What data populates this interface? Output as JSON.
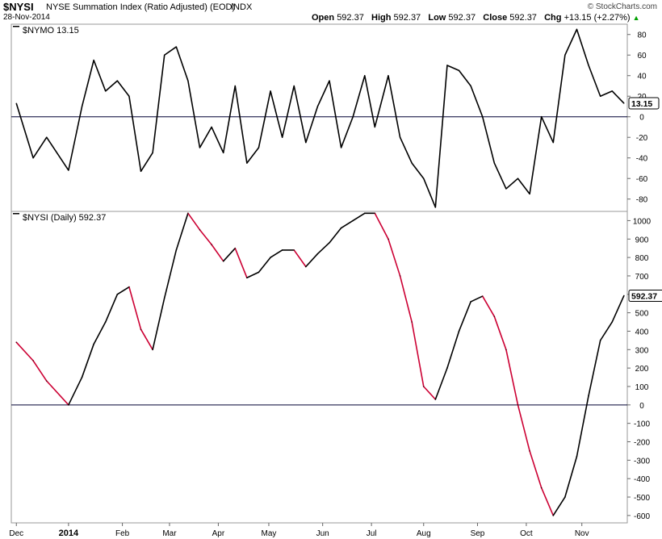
{
  "header": {
    "symbol": "$NYSI",
    "description": "NYSE Summation Index (Ratio Adjusted) (EOD)",
    "exchange": "INDX",
    "date": "28-Nov-2014",
    "copyright": "© StockCharts.com",
    "ohlc": [
      {
        "label": "Open",
        "value": "592.37"
      },
      {
        "label": "High",
        "value": "592.37"
      },
      {
        "label": "Low",
        "value": "592.37"
      },
      {
        "label": "Close",
        "value": "592.37"
      },
      {
        "label": "Chg",
        "value": "+13.15 (+2.27%)"
      }
    ],
    "up_arrow": "▲"
  },
  "chart_data": [
    {
      "type": "line",
      "title": "$NYMO 13.15",
      "last_value_label": "13.15",
      "y_ticks": [
        80,
        60,
        40,
        20,
        0,
        -20,
        -40,
        -60,
        -80
      ],
      "ylim": [
        -92,
        90
      ],
      "zero_line": true,
      "grid": false,
      "color": "#000000",
      "x": [
        "2013-12-02",
        "2013-12-12",
        "2013-12-20",
        "2014-01-02",
        "2014-01-10",
        "2014-01-17",
        "2014-01-24",
        "2014-01-31",
        "2014-02-07",
        "2014-02-14",
        "2014-02-21",
        "2014-02-28",
        "2014-03-07",
        "2014-03-14",
        "2014-03-21",
        "2014-03-28",
        "2014-04-04",
        "2014-04-11",
        "2014-04-18",
        "2014-04-25",
        "2014-05-02",
        "2014-05-09",
        "2014-05-16",
        "2014-05-23",
        "2014-05-30",
        "2014-06-06",
        "2014-06-13",
        "2014-06-20",
        "2014-06-27",
        "2014-07-03",
        "2014-07-11",
        "2014-07-18",
        "2014-07-25",
        "2014-08-01",
        "2014-08-08",
        "2014-08-15",
        "2014-08-22",
        "2014-08-29",
        "2014-09-05",
        "2014-09-12",
        "2014-09-19",
        "2014-09-26",
        "2014-10-03",
        "2014-10-10",
        "2014-10-17",
        "2014-10-24",
        "2014-10-31",
        "2014-11-07",
        "2014-11-14",
        "2014-11-21",
        "2014-11-28"
      ],
      "values": [
        13,
        -40,
        -20,
        -52,
        10,
        55,
        25,
        35,
        20,
        -53,
        -35,
        60,
        68,
        35,
        -30,
        -10,
        -35,
        30,
        -45,
        -30,
        25,
        -20,
        30,
        -25,
        10,
        35,
        -30,
        0,
        40,
        -10,
        40,
        -20,
        -45,
        -60,
        -88,
        50,
        45,
        30,
        0,
        -45,
        -70,
        -60,
        -75,
        0,
        -25,
        60,
        85,
        50,
        20,
        25,
        13.15
      ]
    },
    {
      "type": "line",
      "title": "$NYSI (Daily) 592.37",
      "last_value_label": "592.37",
      "y_ticks": [
        1000,
        900,
        800,
        700,
        600,
        500,
        400,
        300,
        200,
        100,
        0,
        -100,
        -200,
        -300,
        -400,
        -500,
        -600
      ],
      "ylim": [
        -640,
        1050
      ],
      "zero_line": true,
      "grid": false,
      "up_color": "#000000",
      "down_color": "#cc0033",
      "x": [
        "2013-12-02",
        "2013-12-12",
        "2013-12-20",
        "2014-01-02",
        "2014-01-10",
        "2014-01-17",
        "2014-01-24",
        "2014-01-31",
        "2014-02-07",
        "2014-02-14",
        "2014-02-21",
        "2014-02-28",
        "2014-03-07",
        "2014-03-14",
        "2014-03-21",
        "2014-03-28",
        "2014-04-04",
        "2014-04-11",
        "2014-04-18",
        "2014-04-25",
        "2014-05-02",
        "2014-05-09",
        "2014-05-16",
        "2014-05-23",
        "2014-05-30",
        "2014-06-06",
        "2014-06-13",
        "2014-06-20",
        "2014-06-27",
        "2014-07-03",
        "2014-07-11",
        "2014-07-18",
        "2014-07-25",
        "2014-08-01",
        "2014-08-08",
        "2014-08-15",
        "2014-08-22",
        "2014-08-29",
        "2014-09-05",
        "2014-09-12",
        "2014-09-19",
        "2014-09-26",
        "2014-10-03",
        "2014-10-10",
        "2014-10-17",
        "2014-10-24",
        "2014-10-31",
        "2014-11-07",
        "2014-11-14",
        "2014-11-21",
        "2014-11-28"
      ],
      "values": [
        340,
        240,
        130,
        0,
        150,
        330,
        450,
        600,
        640,
        410,
        300,
        580,
        840,
        1040,
        950,
        870,
        780,
        850,
        690,
        720,
        800,
        840,
        840,
        750,
        820,
        880,
        960,
        1000,
        1040,
        1040,
        900,
        700,
        450,
        100,
        30,
        200,
        400,
        560,
        590,
        480,
        300,
        0,
        -250,
        -450,
        -600,
        -500,
        -280,
        50,
        350,
        450,
        592.37
      ]
    }
  ],
  "x_axis": {
    "labels": [
      {
        "text": "Dec",
        "date": "2013-12-02"
      },
      {
        "text": "2014",
        "date": "2014-01-02"
      },
      {
        "text": "Feb",
        "date": "2014-02-03"
      },
      {
        "text": "Mar",
        "date": "2014-03-03"
      },
      {
        "text": "Apr",
        "date": "2014-04-01"
      },
      {
        "text": "May",
        "date": "2014-05-01"
      },
      {
        "text": "Jun",
        "date": "2014-06-02"
      },
      {
        "text": "Jul",
        "date": "2014-07-01"
      },
      {
        "text": "Aug",
        "date": "2014-08-01"
      },
      {
        "text": "Sep",
        "date": "2014-09-02"
      },
      {
        "text": "Oct",
        "date": "2014-10-01"
      },
      {
        "text": "Nov",
        "date": "2014-11-03"
      }
    ],
    "bold": [
      "2014"
    ]
  }
}
